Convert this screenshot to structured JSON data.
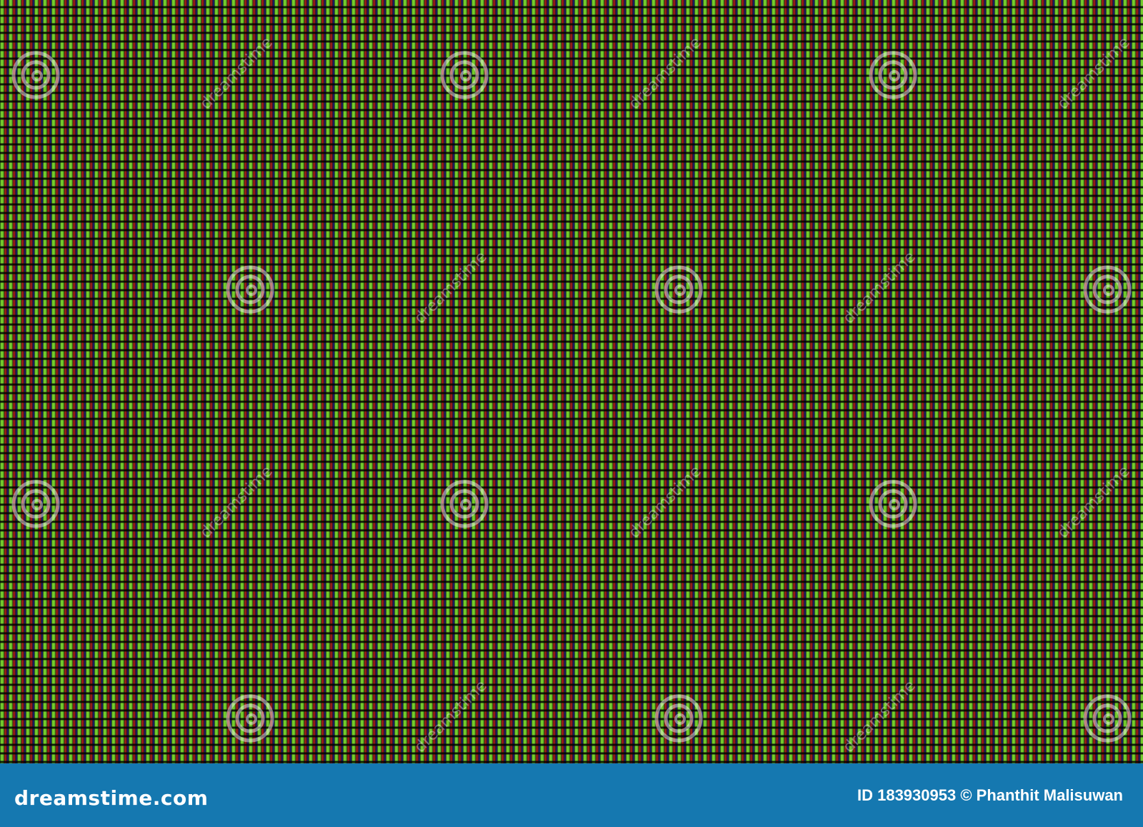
{
  "image": {
    "subject": "macro LED pixel grid",
    "colors": {
      "green": "#8ee83a",
      "red": "#c4231e",
      "blue": "#2a24a0",
      "gap": "#0a0a14"
    }
  },
  "watermark": {
    "text": "dreamstime",
    "logo": "dreamstime-spiral-logo"
  },
  "footer": {
    "brand": "dreamstime.com",
    "credit": "ID 183930953 © Phanthit Malisuwan",
    "background": "#1578b0"
  }
}
